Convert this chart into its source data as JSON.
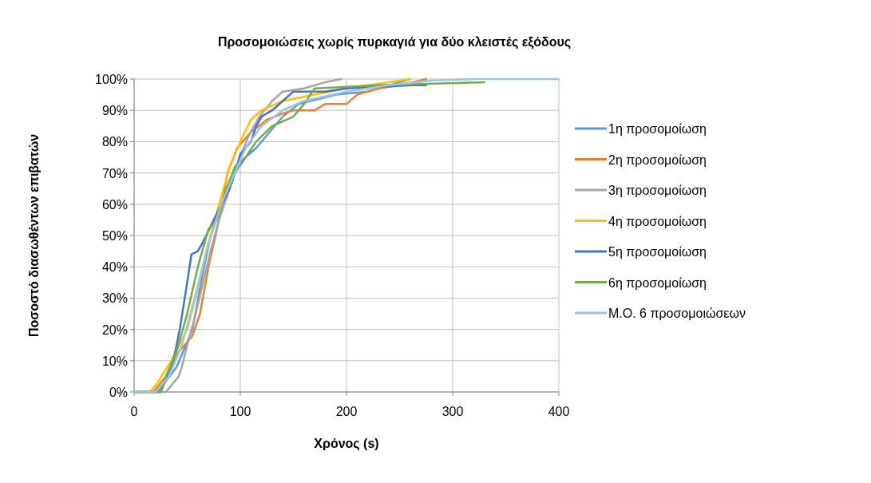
{
  "chart_data": {
    "type": "line",
    "title": "Προσομοιώσεις χωρίς πυρκαγιά για δύο κλειστές εξόδους",
    "xlabel": "Χρόνος (s)",
    "ylabel": "Ποσοστό διασωθέντων επιβατών",
    "xlim": [
      0,
      400
    ],
    "xticks": [
      0,
      100,
      200,
      300,
      400
    ],
    "ylim": [
      0,
      100
    ],
    "yticks": [
      {
        "value": 0,
        "label": "0%"
      },
      {
        "value": 10,
        "label": "10%"
      },
      {
        "value": 20,
        "label": "20%"
      },
      {
        "value": 30,
        "label": "30%"
      },
      {
        "value": 40,
        "label": "40%"
      },
      {
        "value": 50,
        "label": "50%"
      },
      {
        "value": 60,
        "label": "60%"
      },
      {
        "value": 70,
        "label": "70%"
      },
      {
        "value": 80,
        "label": "80%"
      },
      {
        "value": 90,
        "label": "90%"
      },
      {
        "value": 100,
        "label": "100%"
      }
    ],
    "grid": true,
    "legend": "right",
    "marker": "none",
    "line_style": "solid",
    "series": [
      {
        "name": "1η προσομοίωση",
        "color": "#5b9bd5",
        "x": [
          0,
          22,
          40,
          55,
          63,
          72,
          85,
          95,
          105,
          115,
          125,
          140,
          155,
          190,
          220,
          240,
          260
        ],
        "values": [
          0,
          0,
          8,
          20,
          35,
          50,
          62,
          70,
          75,
          78,
          82,
          88,
          92,
          95,
          96,
          98,
          100
        ]
      },
      {
        "name": "2η προσομοίωση",
        "color": "#ed7d31",
        "x": [
          0,
          18,
          30,
          40,
          55,
          62,
          70,
          80,
          88,
          97,
          110,
          125,
          140,
          150,
          170,
          180,
          200,
          210,
          230,
          250,
          275
        ],
        "values": [
          0,
          0,
          5,
          12,
          18,
          25,
          40,
          55,
          70,
          78,
          83,
          87,
          89,
          90,
          90,
          92,
          92,
          95,
          97,
          98,
          100
        ]
      },
      {
        "name": "3η προσομοίωση",
        "color": "#a5a5a5",
        "x": [
          0,
          30,
          42,
          45,
          50,
          58,
          65,
          72,
          80,
          90,
          100,
          108,
          118,
          130,
          140,
          160,
          180,
          195
        ],
        "values": [
          0,
          0,
          5,
          8,
          15,
          25,
          35,
          45,
          55,
          65,
          75,
          82,
          88,
          93,
          96,
          97,
          99,
          100
        ]
      },
      {
        "name": "4η προσομοίωση",
        "color": "#ffc000",
        "x": [
          0,
          15,
          22,
          35,
          50,
          60,
          68,
          80,
          90,
          100,
          110,
          120,
          140,
          170,
          200,
          240,
          260
        ],
        "values": [
          0,
          0,
          3,
          10,
          20,
          33,
          45,
          60,
          72,
          80,
          87,
          90,
          93,
          95,
          97,
          99,
          100
        ]
      },
      {
        "name": "5η προσομοίωση",
        "color": "#4472c4",
        "x": [
          0,
          25,
          37,
          43,
          50,
          54,
          60,
          65,
          75,
          90,
          95,
          100,
          110,
          115,
          120,
          130,
          140,
          150,
          180,
          200,
          260,
          275
        ],
        "values": [
          0,
          0,
          10,
          20,
          35,
          44,
          45,
          48,
          55,
          65,
          70,
          76,
          80,
          85,
          88,
          90,
          93,
          96,
          96,
          97,
          98,
          98
        ]
      },
      {
        "name": "6η προσομοίωση",
        "color": "#70ad47",
        "x": [
          0,
          25,
          30,
          40,
          50,
          60,
          70,
          78,
          87,
          95,
          105,
          115,
          130,
          150,
          160,
          170,
          230,
          330
        ],
        "values": [
          0,
          0,
          5,
          13,
          25,
          40,
          52,
          55,
          65,
          72,
          75,
          80,
          85,
          88,
          92,
          97,
          98,
          99
        ]
      },
      {
        "name": "Μ.Ο. 6 προσομοιώσεων",
        "color": "#9dc3e6",
        "x": [
          0,
          20,
          33,
          45,
          57,
          68,
          82,
          95,
          105,
          120,
          140,
          160,
          200,
          240,
          280,
          320,
          400
        ],
        "values": [
          0,
          0,
          5,
          15,
          30,
          45,
          60,
          70,
          78,
          85,
          90,
          93,
          96,
          98,
          99.5,
          100,
          100
        ]
      }
    ]
  }
}
